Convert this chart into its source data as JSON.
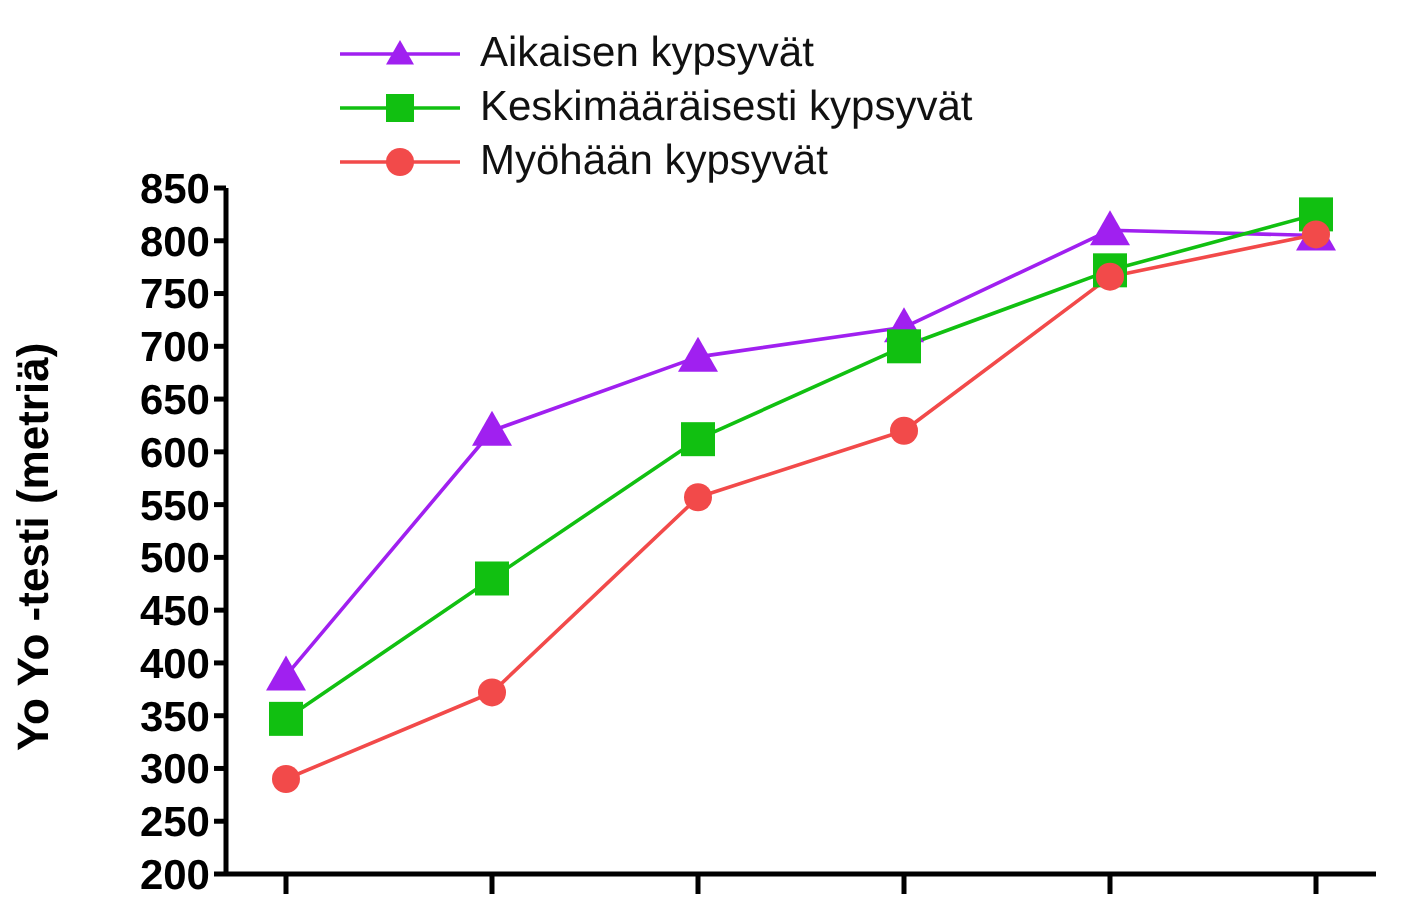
{
  "chart_data": {
    "type": "line",
    "ylabel": "Yo Yo -testi (metriä)",
    "categories": [
      null,
      null,
      null,
      null,
      null,
      null
    ],
    "series": [
      {
        "name": "Aikaisen kypsyvät",
        "color": "#a020f0",
        "marker": "triangle",
        "values": [
          388,
          620,
          690,
          718,
          810,
          805
        ]
      },
      {
        "name": "Keskimääräisesti kypsyvät",
        "color": "#11c011",
        "marker": "square",
        "values": [
          347,
          480,
          612,
          700,
          772,
          825
        ]
      },
      {
        "name": "Myöhään kypsyvät",
        "color": "#f24a4a",
        "marker": "circle",
        "values": [
          290,
          372,
          557,
          620,
          766,
          806
        ]
      }
    ],
    "ylim": [
      200,
      850
    ],
    "yticks": [
      200,
      250,
      300,
      350,
      400,
      450,
      500,
      550,
      600,
      650,
      700,
      750,
      800,
      850
    ],
    "grid": false,
    "legend": "top",
    "line_style": "solid"
  }
}
